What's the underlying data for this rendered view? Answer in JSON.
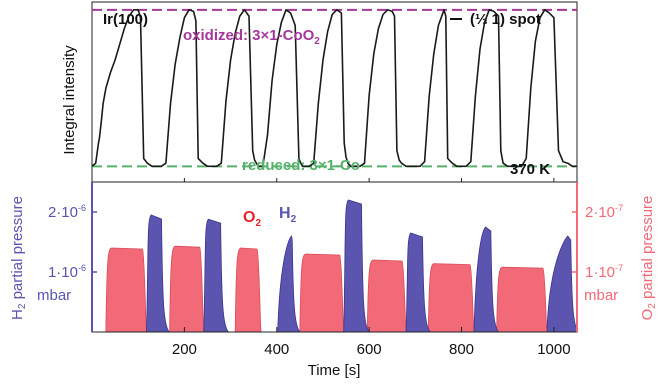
{
  "colors": {
    "h2": "#5b55b0",
    "o2": "#f26a78",
    "oxidized": "#a5399b",
    "reduced": "#56b26b",
    "trace": "#1a1a1a"
  },
  "top_panel": {
    "sample_label": "Ir(100)",
    "legend_label": "(⅓ 1) spot",
    "ylabel": "Integral intensity",
    "oxidized_label_prefix": "oxidized: 3×1-CoO",
    "oxidized_label_sub": "2",
    "reduced_label": "reduced: 3×1-Co",
    "temperature_label": "370 K"
  },
  "bottom_panel": {
    "ylabel_left_prefix": "H",
    "ylabel_left_sub": "2",
    "ylabel_left_suffix": " partial pressure",
    "unit_left": "mbar",
    "ylabel_right_prefix": "O",
    "ylabel_right_sub": "2",
    "ylabel_right_suffix": " partial pressure",
    "unit_right": "mbar",
    "o2_label": "O",
    "o2_label_sub": "2",
    "h2_label": "H",
    "h2_label_sub": "2",
    "left_ticks": [
      {
        "value": 1e-06,
        "label_base": "1·10",
        "label_exp": "-6"
      },
      {
        "value": 2e-06,
        "label_base": "2·10",
        "label_exp": "-6"
      }
    ],
    "right_ticks": [
      {
        "value": 1e-07,
        "label_base": "1·10",
        "label_exp": "-7"
      },
      {
        "value": 2e-07,
        "label_base": "2·10",
        "label_exp": "-7"
      }
    ]
  },
  "xaxis": {
    "label": "Time [s]",
    "ticks": [
      {
        "value": 200,
        "label": "200"
      },
      {
        "value": 400,
        "label": "400"
      },
      {
        "value": 600,
        "label": "600"
      },
      {
        "value": 800,
        "label": "800"
      },
      {
        "value": 1000,
        "label": "1000"
      }
    ]
  },
  "chart_data": [
    {
      "type": "line",
      "series": [
        {
          "name": "(⅓ 1) spot",
          "x": [
            0,
            8,
            14,
            16,
            20,
            24,
            30,
            40,
            50,
            60,
            70,
            80,
            90,
            100,
            105,
            112,
            120,
            130,
            140,
            150,
            160,
            170,
            180,
            190,
            200,
            210,
            220,
            225,
            230,
            240,
            250,
            260,
            270,
            280,
            290,
            300,
            310,
            320,
            330,
            340,
            348,
            352,
            356,
            360,
            370,
            380,
            390,
            400,
            410,
            420,
            430,
            440,
            448,
            452,
            456,
            460,
            470,
            480,
            490,
            500,
            510,
            520,
            530,
            540,
            546,
            550,
            554,
            560,
            570,
            580,
            590,
            600,
            610,
            620,
            630,
            640,
            650,
            655,
            660,
            665,
            670,
            680,
            690,
            700,
            710,
            720,
            730,
            740,
            750,
            762,
            766,
            770,
            780,
            790,
            800,
            810,
            820,
            830,
            840,
            850,
            860,
            870,
            880,
            885,
            890,
            900,
            910,
            920,
            930,
            940,
            950,
            960,
            970,
            980,
            990,
            1000,
            1010,
            1020,
            1030,
            1040,
            1050
          ],
          "values": [
            0.0,
            0.02,
            0.15,
            0.18,
            0.28,
            0.4,
            0.5,
            0.6,
            0.68,
            0.78,
            0.88,
            0.96,
            1.0,
            1.0,
            0.95,
            0.05,
            0.02,
            0.0,
            0.0,
            0.0,
            0.02,
            0.4,
            0.65,
            0.82,
            0.95,
            1.0,
            0.99,
            0.93,
            0.05,
            0.02,
            0.0,
            0.0,
            0.0,
            0.02,
            0.42,
            0.68,
            0.85,
            0.96,
            1.0,
            0.96,
            0.1,
            0.04,
            0.02,
            0.0,
            0.0,
            0.2,
            0.55,
            0.78,
            0.92,
            1.0,
            0.98,
            0.9,
            0.05,
            0.02,
            0.0,
            0.0,
            0.0,
            0.02,
            0.4,
            0.68,
            0.86,
            0.97,
            1.0,
            0.98,
            0.15,
            0.06,
            0.02,
            0.0,
            0.0,
            0.0,
            0.02,
            0.45,
            0.72,
            0.88,
            0.97,
            1.0,
            0.99,
            0.96,
            0.1,
            0.04,
            0.02,
            0.0,
            0.0,
            0.0,
            0.0,
            0.03,
            0.45,
            0.72,
            0.9,
            1.0,
            0.96,
            0.05,
            0.02,
            0.0,
            0.0,
            0.0,
            0.03,
            0.45,
            0.75,
            0.92,
            1.0,
            0.99,
            0.96,
            0.1,
            0.02,
            0.0,
            0.0,
            0.0,
            0.0,
            0.05,
            0.5,
            0.8,
            0.95,
            1.0,
            0.98,
            0.95,
            0.1,
            0.03,
            0.02,
            0.0,
            0.0
          ]
        }
      ],
      "xlim": [
        0,
        1050
      ],
      "ylim": [
        -0.1,
        1.05
      ],
      "levels": [
        {
          "name": "oxidized",
          "value": 1.0
        },
        {
          "name": "reduced",
          "value": 0.0
        }
      ]
    },
    {
      "type": "area",
      "series": [
        {
          "name": "H2",
          "axis": "left",
          "unit": "mbar",
          "pulses": [
            {
              "start": 118,
              "end": 157,
              "peak": 1.95e-06,
              "peak_time": 128
            },
            {
              "start": 242,
              "end": 285,
              "peak": 1.88e-06,
              "peak_time": 252
            },
            {
              "start": 402,
              "end": 440,
              "peak": 1.6e-06,
              "peak_time": 432
            },
            {
              "start": 545,
              "end": 590,
              "peak": 2.2e-06,
              "peak_time": 555
            },
            {
              "start": 680,
              "end": 722,
              "peak": 1.65e-06,
              "peak_time": 690
            },
            {
              "start": 827,
              "end": 870,
              "peak": 1.75e-06,
              "peak_time": 852
            },
            {
              "start": 985,
              "end": 1043,
              "peak": 1.6e-06,
              "peak_time": 1030
            }
          ]
        },
        {
          "name": "O2",
          "axis": "right",
          "unit": "mbar",
          "pulses": [
            {
              "start": 30,
              "end": 118,
              "peak": 1.4e-07
            },
            {
              "start": 168,
              "end": 242,
              "peak": 1.43e-07
            },
            {
              "start": 310,
              "end": 366,
              "peak": 1.4e-07
            },
            {
              "start": 450,
              "end": 545,
              "peak": 1.3e-07
            },
            {
              "start": 596,
              "end": 680,
              "peak": 1.2e-07
            },
            {
              "start": 728,
              "end": 827,
              "peak": 1.14e-07
            },
            {
              "start": 876,
              "end": 985,
              "peak": 1.08e-07
            }
          ]
        }
      ],
      "xlim": [
        0,
        1050
      ],
      "ylim_left": [
        0,
        2.5e-06
      ],
      "ylim_right": [
        0,
        2.5e-07
      ]
    }
  ]
}
